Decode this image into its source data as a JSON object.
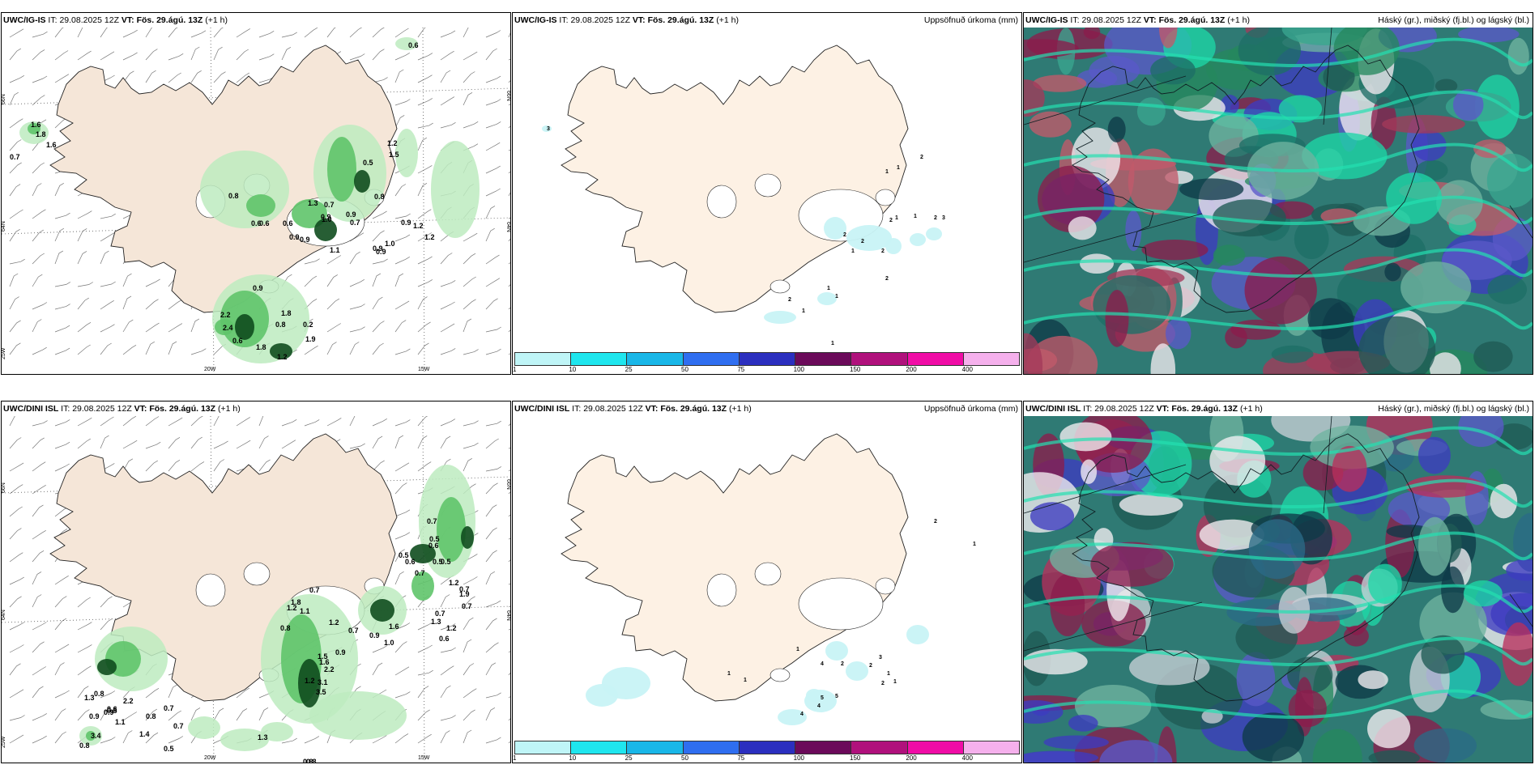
{
  "panels": [
    {
      "id": "p1",
      "model": "UWC/IG-IS",
      "it_label": "IT:",
      "it": "29.08.2025 12Z",
      "vt_label": "VT:",
      "vt": "Fös. 29.ágú. 13Z",
      "lead": "(+1 h)",
      "right_title": "",
      "type": "precip_wind"
    },
    {
      "id": "p2",
      "model": "UWC/IG-IS",
      "it_label": "IT:",
      "it": "29.08.2025 12Z",
      "vt_label": "VT:",
      "vt": "Fös. 29.ágú. 13Z",
      "lead": "(+1 h)",
      "right_title": "Uppsöfnuð úrkoma (mm)",
      "type": "accum"
    },
    {
      "id": "p3",
      "model": "UWC/IG-IS",
      "it_label": "IT:",
      "it": "29.08.2025 12Z",
      "vt_label": "VT:",
      "vt": "Fös. 29.ágú. 13Z",
      "lead": "(+1 h)",
      "right_title": "Háský (gr.), miðský (fj.bl.) og lágský (bl.)",
      "type": "cloud"
    },
    {
      "id": "p4",
      "model": "UWC/DINI ISL",
      "it_label": "IT:",
      "it": "29.08.2025 12Z",
      "vt_label": "VT:",
      "vt": "Fös. 29.ágú. 13Z",
      "lead": "(+1 h)",
      "right_title": "",
      "type": "precip_wind"
    },
    {
      "id": "p5",
      "model": "UWC/DINI ISL",
      "it_label": "IT:",
      "it": "29.08.2025 12Z",
      "vt_label": "VT:",
      "vt": "Fös. 29.ágú. 13Z",
      "lead": "(+1 h)",
      "right_title": "Uppsöfnuð úrkoma (mm)",
      "type": "accum"
    },
    {
      "id": "p6",
      "model": "UWC/DINI ISL",
      "it_label": "IT:",
      "it": "29.08.2025 12Z",
      "vt_label": "VT:",
      "vt": "Fös. 29.ágú. 13Z",
      "lead": "(+1 h)",
      "right_title": "Háský (gr.), miðský (fj.bl.) og lágský (bl.)",
      "type": "cloud"
    }
  ],
  "grid_labels": {
    "lat_66": "66N",
    "lat_64": "64N",
    "lon_25": "25W",
    "lon_20": "20W",
    "lon_15": "15W"
  },
  "colorbar": {
    "labels": [
      "1",
      "10",
      "25",
      "50",
      "75",
      "100",
      "150",
      "200",
      "400"
    ],
    "colors": [
      "#bff5f7",
      "#1fe6ee",
      "#19b7e8",
      "#2f6ef0",
      "#2b2fbf",
      "#6b0a5a",
      "#b0117c",
      "#f00ca6",
      "#f5b0ec"
    ]
  },
  "colors": {
    "land": "#f5e6d8",
    "land_accum": "#fdf1e4",
    "precip_light": "#bdebbf",
    "precip_mid": "#5fc46a",
    "precip_dark": "#0f4d1e",
    "accum_light": "#c8f3f5"
  },
  "precip_labels_ig": [
    "0.6",
    "0.7",
    "1.6",
    "1.6",
    "1.8",
    "1.2",
    "1.5",
    "0.5",
    "0.8",
    "1.3",
    "0.7",
    "0.9",
    "0.9",
    "0.7",
    "0.6",
    "0.6",
    "0.6",
    "0.9",
    "0.9",
    "1.0",
    "1.1",
    "0.9",
    "1.0",
    "0.9",
    "1.2",
    "1.2",
    "0.8",
    "0.9",
    "2.2",
    "2.4",
    "0.6",
    "1.8",
    "1.8",
    "0.8",
    "0.2",
    "1.9",
    "1.2",
    "0.9"
  ],
  "precip_labels_dini": [
    "0.7",
    "0.5",
    "0.6",
    "0.5",
    "0.6",
    "0.5",
    "0.5",
    "0.7",
    "1.2",
    "0.7",
    "1.9",
    "0.7",
    "0.7",
    "1.3",
    "1.2",
    "0.6",
    "0.7",
    "1.8",
    "1.2",
    "1.1",
    "0.8",
    "1.2",
    "0.7",
    "0.9",
    "1.0",
    "1.6",
    "3.1",
    "3.5",
    "0.9",
    "1.6",
    "1.5",
    "2.2",
    "1.2",
    "0.8",
    "0.5",
    "0.6",
    "1.3",
    "0.9",
    "2.2",
    "0.8",
    "0.7",
    "0.7",
    "0.9",
    "1.1",
    "1.4",
    "1.3",
    "3.4",
    "0.8",
    "0.5",
    "0.8"
  ],
  "accum_labels_ig": [
    "3",
    "2",
    "1",
    "1",
    "2",
    "1",
    "1",
    "2",
    "3",
    "2",
    "2",
    "1",
    "2",
    "2",
    "1",
    "1",
    "2",
    "1",
    "1"
  ],
  "accum_labels_dini": [
    "2",
    "1",
    "1",
    "4",
    "2",
    "2",
    "5",
    "4",
    "4",
    "5",
    "2",
    "3",
    "1",
    "1",
    "1",
    "1"
  ]
}
